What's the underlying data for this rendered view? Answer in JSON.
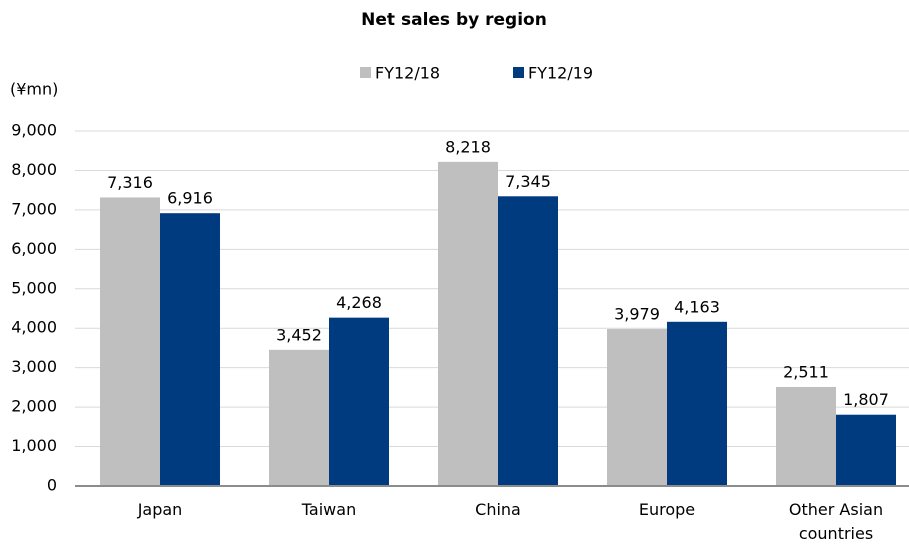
{
  "chart_data": {
    "type": "bar",
    "title": "Net sales by region",
    "y_label": "(¥mn)",
    "categories": [
      "Japan",
      "Taiwan",
      "China",
      "Europe",
      "Other Asian countries"
    ],
    "series": [
      {
        "name": "FY12/18",
        "color": "#bfbfbf",
        "values": [
          7316,
          3452,
          8218,
          3979,
          2511
        ],
        "value_labels": [
          "7,316",
          "3,452",
          "8,218",
          "3,979",
          "2,511"
        ]
      },
      {
        "name": "FY12/19",
        "color": "#003b80",
        "values": [
          6916,
          4268,
          7345,
          4163,
          1807
        ],
        "value_labels": [
          "6,916",
          "4,268",
          "7,345",
          "4,163",
          "1,807"
        ]
      }
    ],
    "ylim": [
      0,
      9000
    ],
    "yticks": [
      0,
      {
        "value": 1000,
        "label": "1,000"
      },
      {
        "value": 2000,
        "label": "2,000"
      },
      {
        "value": 3000,
        "label": "3,000"
      },
      {
        "value": 4000,
        "label": "4,000"
      },
      {
        "value": 5000,
        "label": "5,000"
      },
      {
        "value": 6000,
        "label": "6,000"
      },
      {
        "value": 7000,
        "label": "7,000"
      },
      {
        "value": 8000,
        "label": "8,000"
      },
      {
        "value": 9000,
        "label": "9,000"
      }
    ],
    "grid": true,
    "legend": "top"
  }
}
